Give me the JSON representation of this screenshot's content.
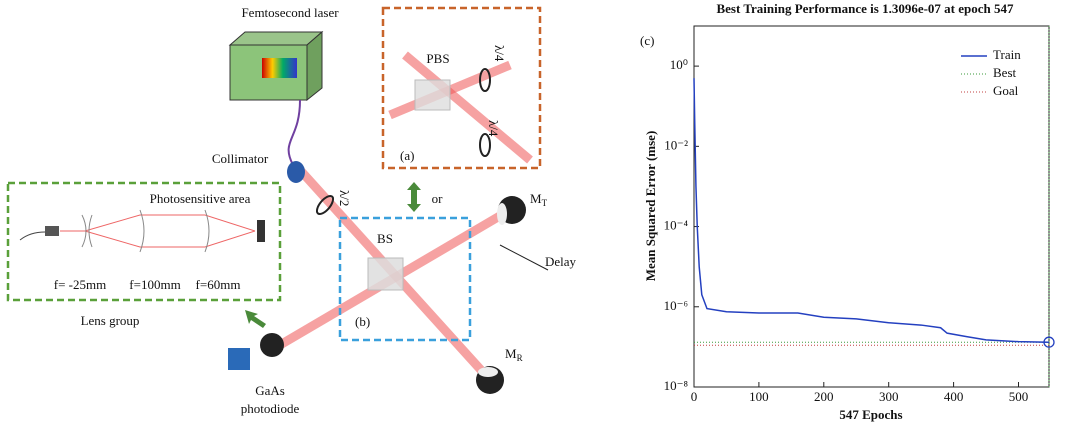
{
  "diagram": {
    "laser": "Femtosecond laser",
    "pbs": "PBS",
    "qwp_top": "λ/4",
    "qwp_bottom": "λ/4",
    "panel_a": "(a)",
    "collimator": "Collimator",
    "hwp": "λ/2",
    "or": "or",
    "mirror_t": {
      "main": "M",
      "sub": "T"
    },
    "bs": "BS",
    "delay": "Delay",
    "panel_b": "(b)",
    "photosensitive": "Photosensitive area",
    "lens1": "f= -25mm",
    "lens2": "f=100mm",
    "lens3": "f=60mm",
    "lens_group": "Lens group",
    "photodiode": [
      "GaAs",
      "photodiode"
    ],
    "mirror_r": {
      "main": "M",
      "sub": "R"
    }
  },
  "chart_data": {
    "type": "line",
    "panel": "(c)",
    "title": "Best Training Performance is 1.3096e-07 at epoch 547",
    "xlabel": "547 Epochs",
    "ylabel": "Mean Squared Error  (mse)",
    "log_y": true,
    "grid": false,
    "legend": "upper right",
    "xlim": [
      0,
      547
    ],
    "xticks": [
      0,
      100,
      200,
      300,
      400,
      500
    ],
    "ylim": [
      1e-08,
      10
    ],
    "yticks": [
      {
        "value": 1,
        "label": "10⁰"
      },
      {
        "value": 0.01,
        "label": "10⁻²"
      },
      {
        "value": 0.0001,
        "label": "10⁻⁴"
      },
      {
        "value": 1e-06,
        "label": "10⁻⁶"
      },
      {
        "value": 1e-08,
        "label": "10⁻⁸"
      }
    ],
    "x": [
      0,
      1,
      3,
      5,
      8,
      12,
      20,
      50,
      100,
      160,
      200,
      250,
      300,
      350,
      380,
      390,
      420,
      450,
      500,
      547
    ],
    "series": [
      {
        "name": "Train",
        "color": "#2440c0",
        "values": [
          0.5,
          0.05,
          0.001,
          0.0001,
          1e-05,
          2e-06,
          9e-07,
          7.5e-07,
          7e-07,
          7e-07,
          5.5e-07,
          5e-07,
          4e-07,
          3.5e-07,
          3e-07,
          2.2e-07,
          1.8e-07,
          1.5e-07,
          1.35e-07,
          1.3096e-07
        ]
      }
    ],
    "best": {
      "name": "Best",
      "color": "#3a9a3a",
      "x": 547,
      "value": 1.3096e-07
    },
    "goal": {
      "name": "Goal",
      "color": "#c04040",
      "value": 1.1e-07
    }
  }
}
